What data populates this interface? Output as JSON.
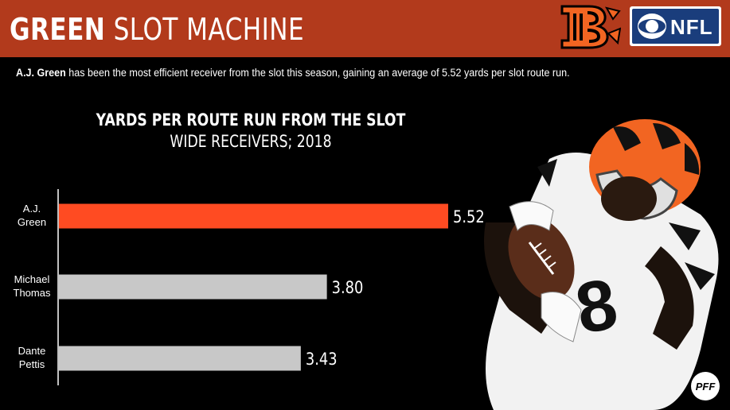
{
  "header": {
    "title_bold": "GREEN",
    "title_light": "SLOT MACHINE",
    "bg_color": "#b23a1c",
    "logos": {
      "team": "bengals-b-logo",
      "network": "cbs-eye-icon",
      "network_text": "NFL"
    }
  },
  "subtitle": {
    "name": "A.J. Green",
    "text": " has been the most efficient receiver from the slot this season, gaining an average of 5.52 yards per slot route run."
  },
  "chart_data": {
    "type": "bar",
    "orientation": "horizontal",
    "title": "YARDS PER ROUTE RUN FROM THE SLOT",
    "subtitle": "WIDE RECEIVERS; 2018",
    "categories": [
      [
        "A.J.",
        "Green"
      ],
      [
        "Michael",
        "Thomas"
      ],
      [
        "Dante",
        "Pettis"
      ]
    ],
    "values": [
      5.52,
      3.8,
      3.43
    ],
    "value_labels": [
      "5.52",
      "3.80",
      "3.43"
    ],
    "colors": [
      "#ff4b22",
      "#c8c8c8",
      "#c8c8c8"
    ],
    "xlim": [
      0,
      6.2
    ],
    "grid": false
  },
  "watermark": "pff-logo"
}
